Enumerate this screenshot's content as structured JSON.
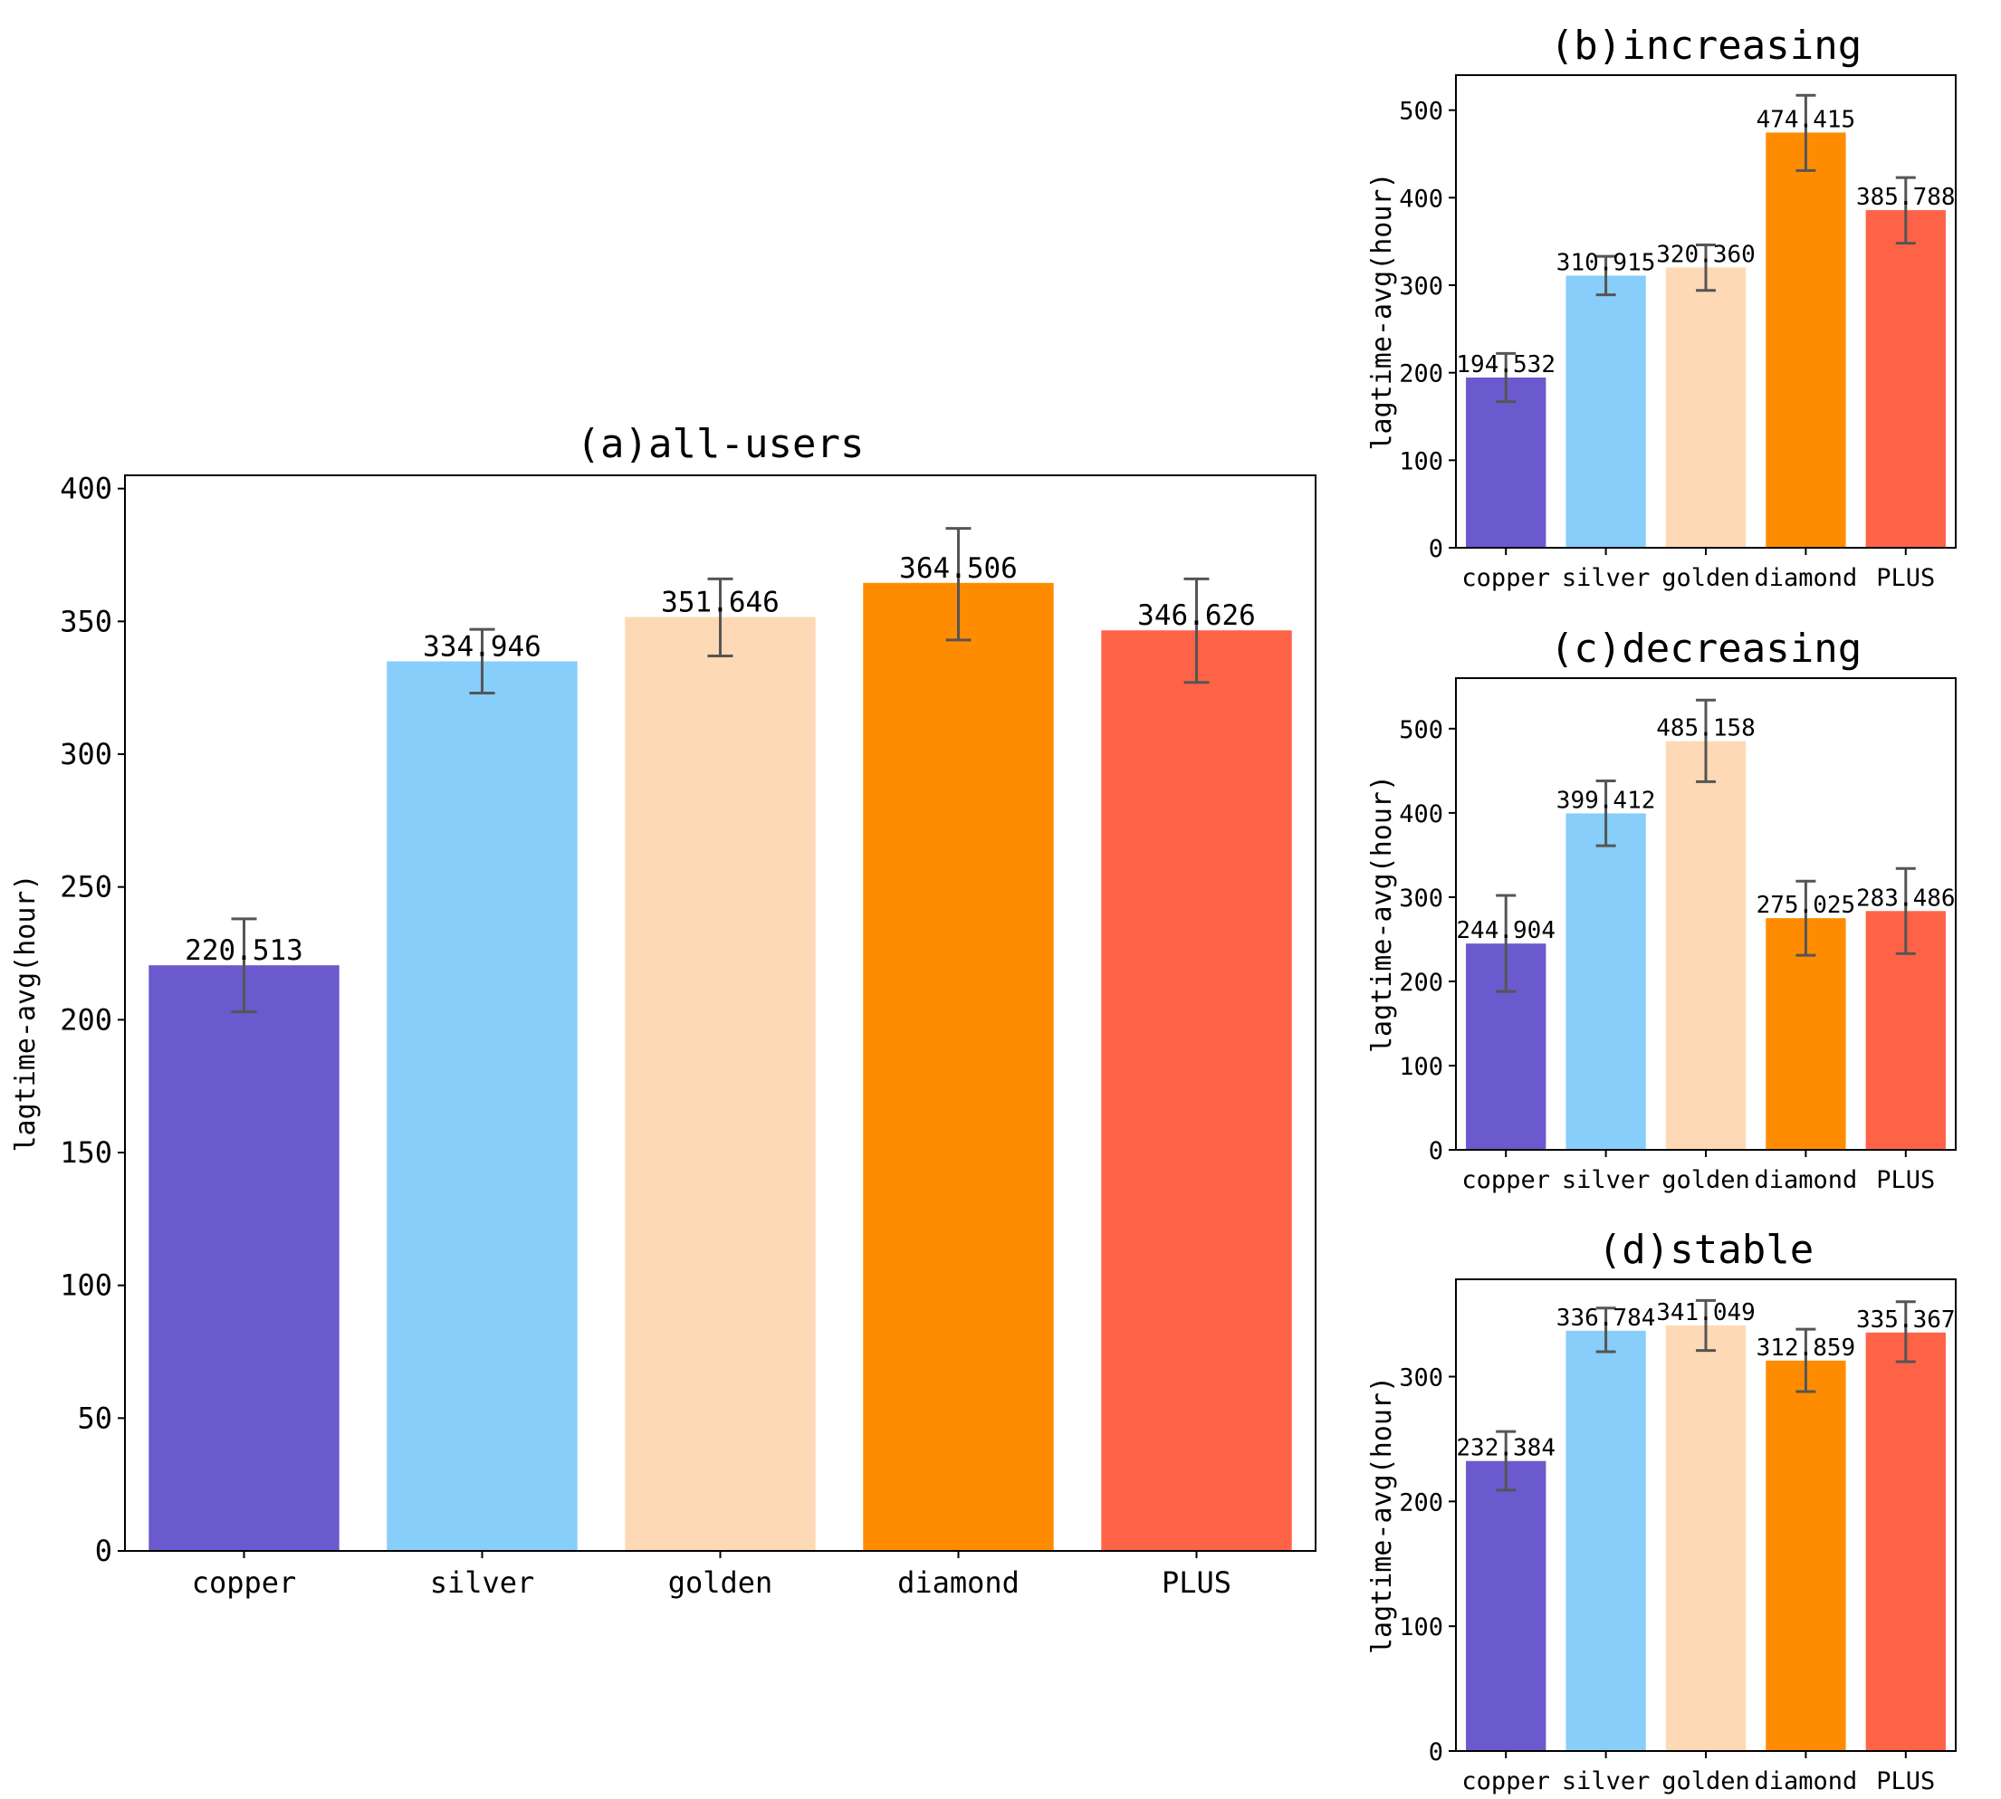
{
  "colors": {
    "copper": "#6a5acd",
    "silver": "#87cefa",
    "golden": "#fdd9b5",
    "diamond": "#ff8c00",
    "PLUS": "#ff6347",
    "errorbar": "#555555",
    "axis": "#000000"
  },
  "chart_data": [
    {
      "id": "a",
      "type": "bar",
      "title": "(a)all-users",
      "xlabel": "",
      "ylabel": "lagtime-avg(hour)",
      "categories": [
        "copper",
        "silver",
        "golden",
        "diamond",
        "PLUS"
      ],
      "values": [
        220.513,
        334.946,
        351.646,
        364.506,
        346.626
      ],
      "value_labels": [
        "220.513",
        "334.946",
        "351.646",
        "364.506",
        "346.626"
      ],
      "error_low": [
        203,
        323,
        337,
        343,
        327
      ],
      "error_high": [
        238,
        347,
        366,
        385,
        366
      ],
      "ylim": [
        0,
        405
      ],
      "yticks": [
        0,
        50,
        100,
        150,
        200,
        250,
        300,
        350,
        400
      ],
      "grid": false
    },
    {
      "id": "b",
      "type": "bar",
      "title": "(b)increasing",
      "xlabel": "",
      "ylabel": "lagtime-avg(hour)",
      "categories": [
        "copper",
        "silver",
        "golden",
        "diamond",
        "PLUS"
      ],
      "values": [
        194.532,
        310.915,
        320.36,
        474.415,
        385.788
      ],
      "value_labels": [
        "194.532",
        "310.915",
        "320.360",
        "474.415",
        "385.788"
      ],
      "error_low": [
        167,
        289,
        294,
        431,
        348
      ],
      "error_high": [
        222,
        333,
        346,
        517,
        423
      ],
      "ylim": [
        0,
        540
      ],
      "yticks": [
        0,
        100,
        200,
        300,
        400,
        500
      ],
      "grid": false
    },
    {
      "id": "c",
      "type": "bar",
      "title": "(c)decreasing",
      "xlabel": "",
      "ylabel": "lagtime-avg(hour)",
      "categories": [
        "copper",
        "silver",
        "golden",
        "diamond",
        "PLUS"
      ],
      "values": [
        244.904,
        399.412,
        485.158,
        275.025,
        283.486
      ],
      "value_labels": [
        "244.904",
        "399.412",
        "485.158",
        "275.025",
        "283.486"
      ],
      "error_low": [
        188,
        361,
        437,
        231,
        233
      ],
      "error_high": [
        302,
        438,
        534,
        319,
        334
      ],
      "ylim": [
        0,
        560
      ],
      "yticks": [
        0,
        100,
        200,
        300,
        400,
        500
      ],
      "grid": false
    },
    {
      "id": "d",
      "type": "bar",
      "title": "(d)stable",
      "xlabel": "",
      "ylabel": "lagtime-avg(hour)",
      "categories": [
        "copper",
        "silver",
        "golden",
        "diamond",
        "PLUS"
      ],
      "values": [
        232.384,
        336.784,
        341.049,
        312.859,
        335.367
      ],
      "value_labels": [
        "232.384",
        "336.784",
        "341.049",
        "312.859",
        "335.367"
      ],
      "error_low": [
        209,
        320,
        321,
        288,
        312
      ],
      "error_high": [
        256,
        355,
        361,
        338,
        360
      ],
      "ylim": [
        0,
        378
      ],
      "yticks": [
        0,
        100,
        200,
        300
      ],
      "grid": false
    }
  ]
}
